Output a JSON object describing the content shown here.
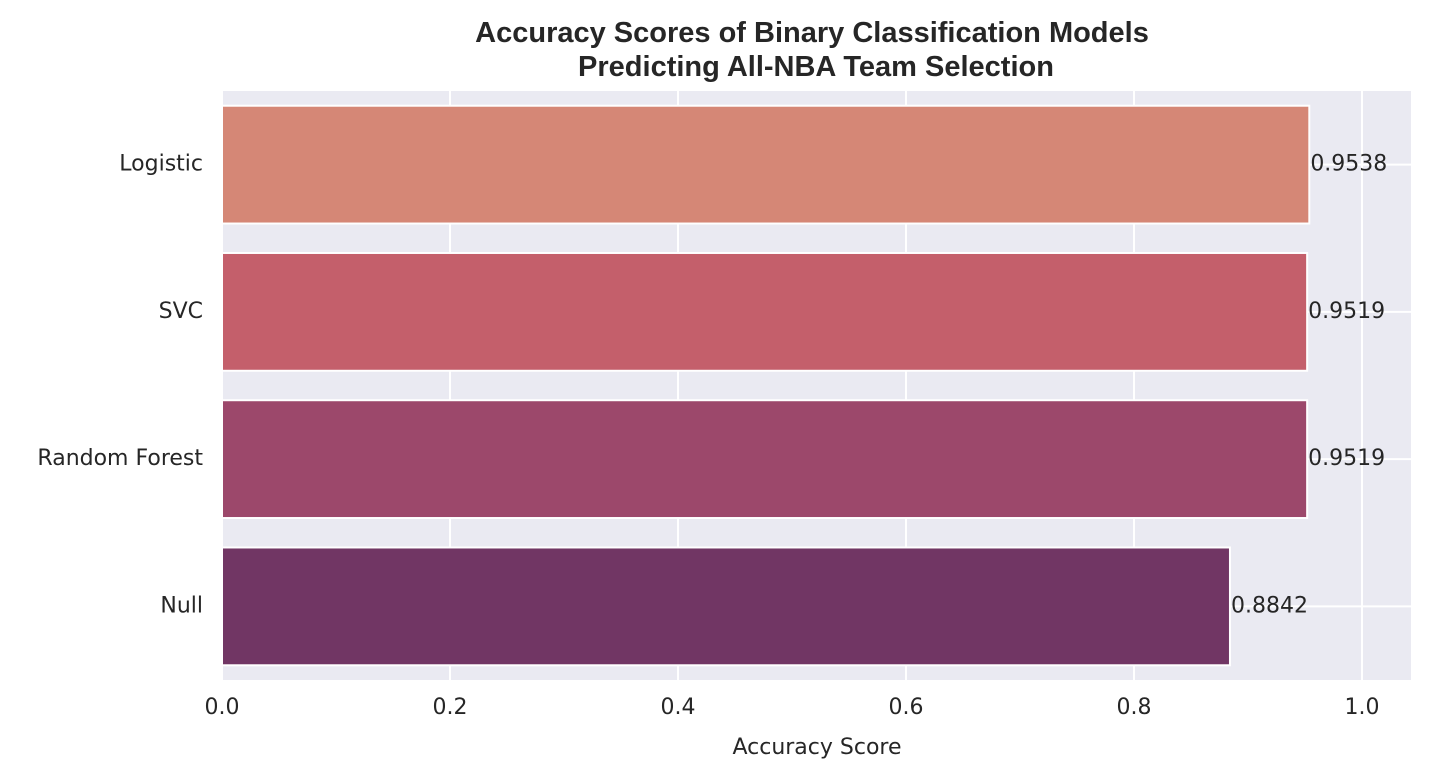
{
  "chart_data": {
    "type": "bar",
    "orientation": "horizontal",
    "title": "Accuracy Scores of Binary Classification Models",
    "subtitle": "Predicting All-NBA Team Selection",
    "xlabel": "Accuracy Score",
    "ylabel": "",
    "categories": [
      "Logistic",
      "SVC",
      "Random Forest",
      "Null"
    ],
    "values": [
      0.9538,
      0.9519,
      0.9519,
      0.8842
    ],
    "data_labels": [
      "0.9538",
      "0.9519",
      "0.9519",
      "0.8842"
    ],
    "bar_colors": [
      "#d58776",
      "#c45f6b",
      "#9c486b",
      "#713664"
    ],
    "xlim": [
      0.0,
      1.043
    ],
    "xticks": [
      0.0,
      0.2,
      0.4,
      0.6,
      0.8,
      1.0
    ],
    "xtick_labels": [
      "0.0",
      "0.2",
      "0.4",
      "0.6",
      "0.8",
      "1.0"
    ],
    "grid": true,
    "plot_background": "#eaeaf2",
    "grid_color": "#ffffff"
  }
}
